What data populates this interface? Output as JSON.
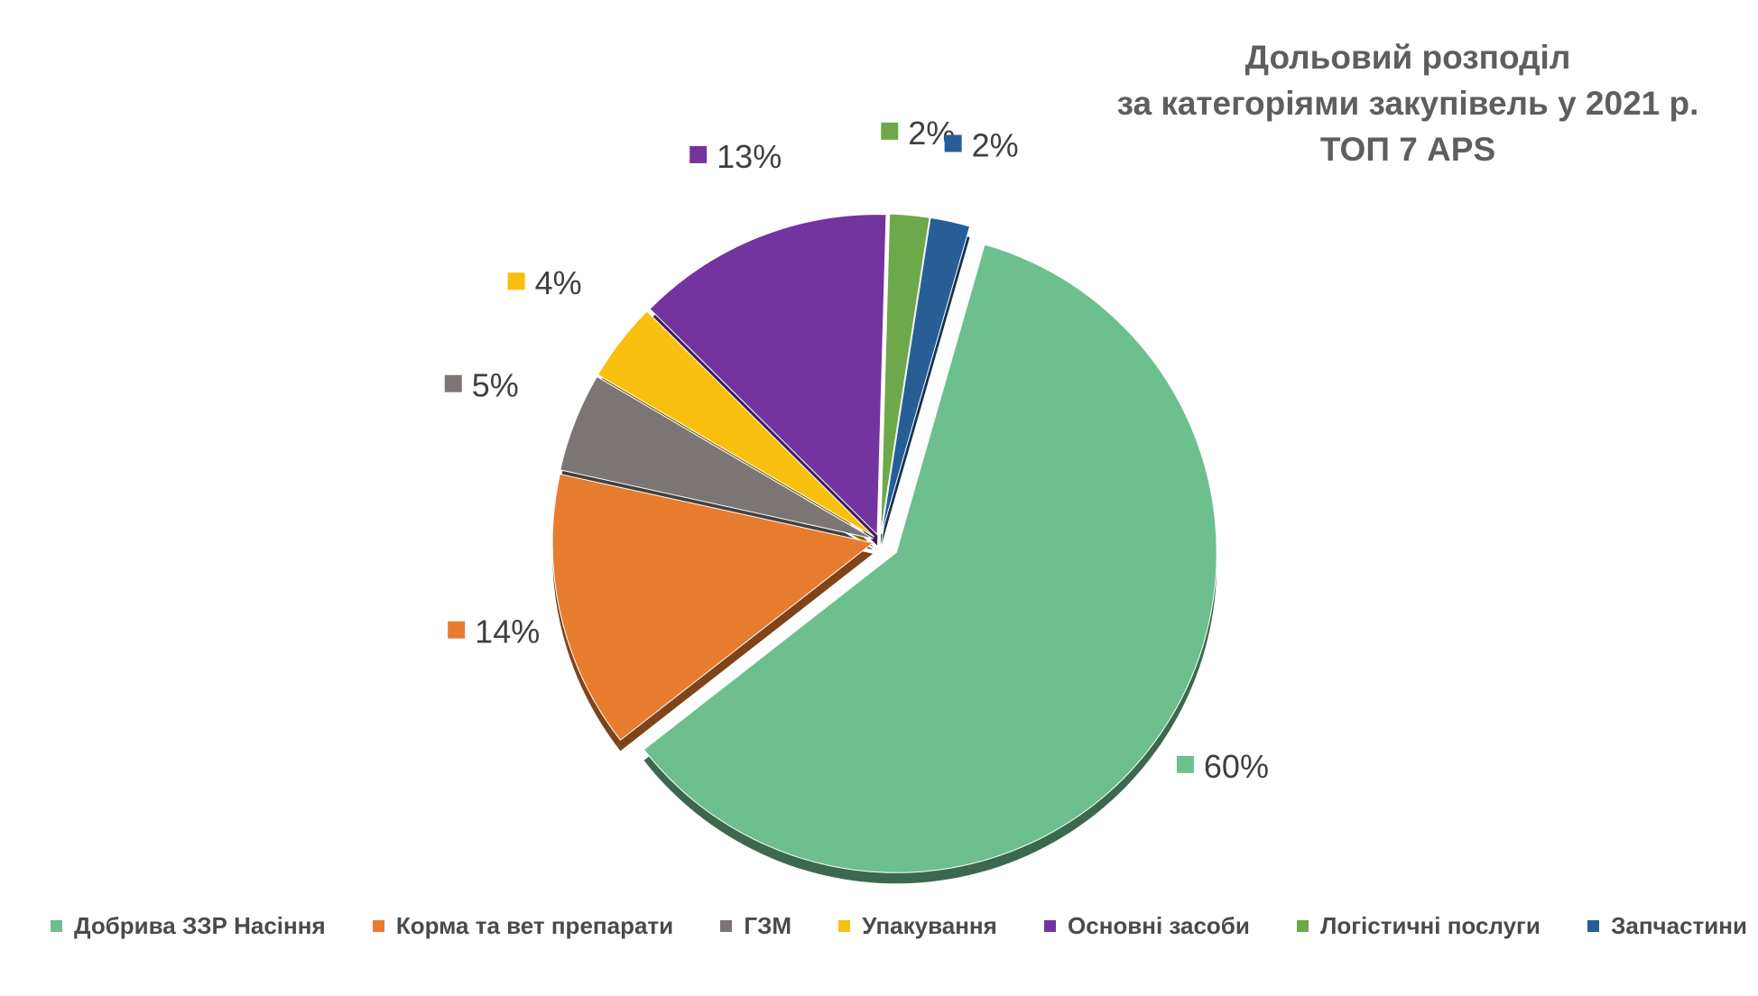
{
  "chart_data": {
    "type": "pie",
    "title_lines": [
      "Дольовий розподіл",
      "за категоріями закупівель у 2021 р.",
      "ТОП 7 APS"
    ],
    "slices": [
      {
        "name": "Добрива ЗЗР Насіння",
        "value": 60,
        "label": "60%",
        "color": "#6dbf8e"
      },
      {
        "name": "Корма та вет препарати",
        "value": 14,
        "label": "14%",
        "color": "#e77c2f"
      },
      {
        "name": "ГЗМ",
        "value": 5,
        "label": "5%",
        "color": "#7b7574"
      },
      {
        "name": "Упакування",
        "value": 4,
        "label": "4%",
        "color": "#f8bf0f"
      },
      {
        "name": "Основні засоби",
        "value": 13,
        "label": "13%",
        "color": "#7434a0"
      },
      {
        "name": "Логістичні послуги",
        "value": 2,
        "label": "2%",
        "color": "#6da84a"
      },
      {
        "name": "Запчастини",
        "value": 2,
        "label": "2%",
        "color": "#275e95"
      }
    ],
    "legend_position": "bottom"
  }
}
